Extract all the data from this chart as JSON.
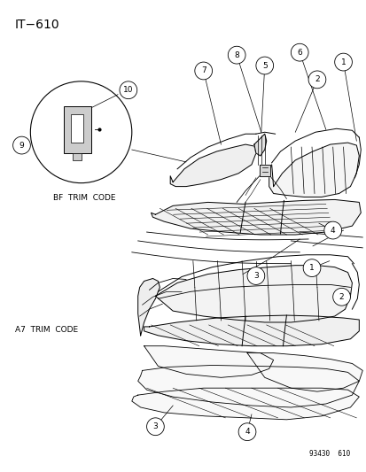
{
  "title": "IT−610",
  "bg_color": "#ffffff",
  "part_number": "93430  610",
  "bf_trim_label": "BF  TRIM  CODE",
  "a7_trim_label": "A7  TRIM  CODE",
  "title_fontsize": 11,
  "label_fontsize": 7,
  "callout_fontsize": 6.5,
  "line_color": "#000000",
  "lw": 0.7
}
